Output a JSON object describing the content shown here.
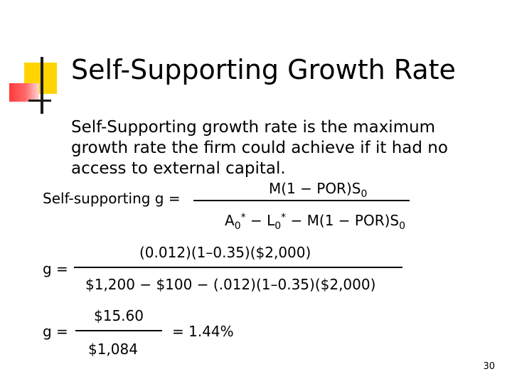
{
  "slide": {
    "title": "Self-Supporting Growth Rate",
    "body_lines": [
      "Self-Supporting growth rate is the maximum",
      "growth rate the firm could achieve if it had no",
      "access to external capital."
    ],
    "formula1": {
      "lhs": "Self-supporting g =",
      "num": "M(1 − POR)S",
      "num_sub": "0",
      "den_a": "A",
      "den_a_sub": "0",
      "den_a_sup": "*",
      "den_minus1": " − ",
      "den_l": "L",
      "den_l_sub": "0",
      "den_l_sup": "*",
      "den_rest": " − M(1 − POR)S",
      "den_rest_sub": "0"
    },
    "formula2": {
      "lhs": "g =",
      "num": "(0.012)(1–0.35)($2,000)",
      "den": "$1,200 − $100 − (.012)(1–0.35)($2,000)"
    },
    "formula3": {
      "lhs": "g =",
      "num": "$15.60",
      "den": "$1,084",
      "result": "= 1.44%"
    },
    "page_number": "30"
  }
}
